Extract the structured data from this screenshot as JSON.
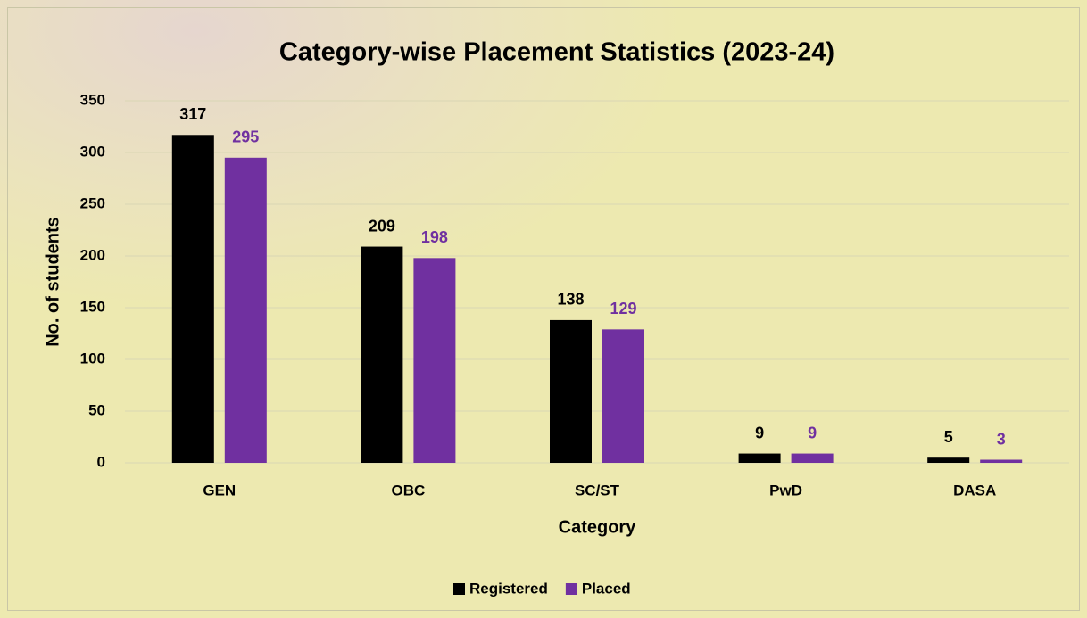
{
  "chart_data": {
    "type": "bar",
    "title": "Category-wise Placement Statistics (2023-24)",
    "x_label": "Category",
    "y_label": "No. of students",
    "categories": [
      "GEN",
      "OBC",
      "SC/ST",
      "PwD",
      "DASA"
    ],
    "series": [
      {
        "name": "Registered",
        "color": "#000000",
        "values": [
          317,
          209,
          138,
          9,
          5
        ]
      },
      {
        "name": "Placed",
        "color": "#7030a0",
        "values": [
          295,
          198,
          129,
          9,
          3
        ]
      }
    ],
    "ylim": [
      0,
      350
    ],
    "yticks": [
      0,
      50,
      100,
      150,
      200,
      250,
      300,
      350
    ],
    "grid": true,
    "legend": "bottom"
  }
}
